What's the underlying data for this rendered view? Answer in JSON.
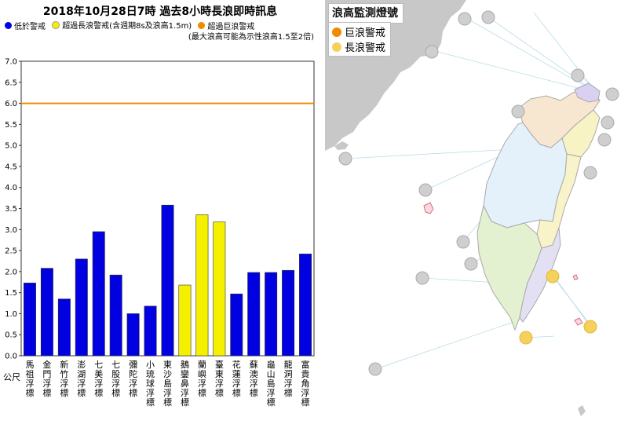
{
  "title": "2018年10月28日7時  過去8小時長浪即時訊息",
  "legend": [
    {
      "label": "低於警戒",
      "color": "#0000e0"
    },
    {
      "label": "超過長浪警戒(含週期8s及浪高1.5m)",
      "color": "#f5f000"
    },
    {
      "label": "超過巨浪警戒",
      "color": "#f08a00"
    }
  ],
  "note": "(最大浪高可能為示性浪高1.5至2倍)",
  "unit_label": "公尺",
  "colors": {
    "below": "#0000e0",
    "swell": "#f5f000",
    "threshold": "#f08a00"
  },
  "chart_data": {
    "type": "bar",
    "title": "2018年10月28日7時  過去8小時長浪即時訊息",
    "ylabel": "公尺",
    "ylim": [
      0,
      7
    ],
    "yticks": [
      "0.0",
      "0.5",
      "1.0",
      "1.5",
      "2.0",
      "2.5",
      "3.0",
      "3.5",
      "4.0",
      "4.5",
      "5.0",
      "5.5",
      "6.0",
      "6.5",
      "7.0"
    ],
    "threshold": 6.0,
    "grid": false,
    "categories": [
      "馬祖浮標",
      "金門浮標",
      "新竹浮標",
      "澎湖浮標",
      "七美浮標",
      "七股浮標",
      "彌陀浮標",
      "小琉球浮標",
      "東沙島浮標",
      "鵝鑾鼻浮標",
      "蘭嶼浮標",
      "臺東浮標",
      "花蓮浮標",
      "蘇澳浮標",
      "龜山島浮標",
      "龍洞浮標",
      "富貴角浮標"
    ],
    "values": [
      1.73,
      2.08,
      1.35,
      2.3,
      2.95,
      1.92,
      1.0,
      1.18,
      3.58,
      1.68,
      3.35,
      3.18,
      1.47,
      1.98,
      1.98,
      2.03,
      2.42
    ],
    "status": [
      "below",
      "below",
      "below",
      "below",
      "below",
      "below",
      "below",
      "below",
      "below",
      "swell",
      "swell",
      "swell",
      "below",
      "below",
      "below",
      "below",
      "below"
    ]
  },
  "map": {
    "title": "浪高監測燈號",
    "legend": [
      {
        "label": "巨浪警戒",
        "color": "#f08a00"
      },
      {
        "label": "長浪警戒",
        "color": "#f5d05a"
      }
    ]
  }
}
